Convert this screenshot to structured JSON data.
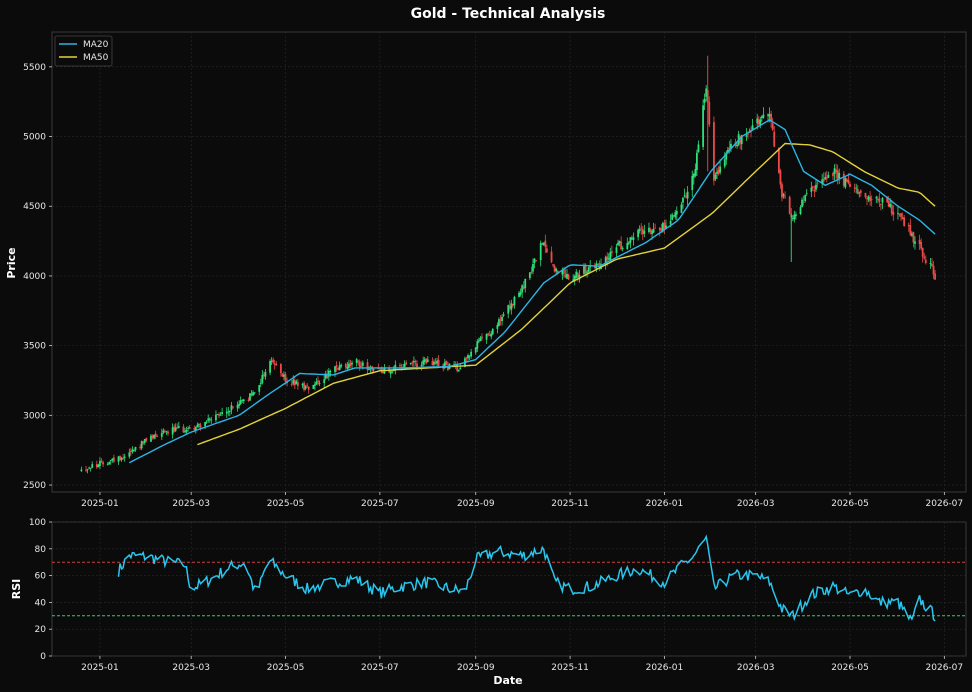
{
  "chart_data": [
    {
      "type": "candlestick",
      "title": "Gold - Technical Analysis",
      "ylabel": "Price",
      "ylim": [
        2450,
        5750
      ],
      "yticks": [
        2500,
        3000,
        3500,
        4000,
        4500,
        5000,
        5500
      ],
      "xrange": [
        "2024-12-01",
        "2026-07-15"
      ],
      "xticks": [
        "2025-01",
        "2025-03",
        "2025-05",
        "2025-07",
        "2025-09",
        "2025-11",
        "2026-01",
        "2026-03",
        "2026-05",
        "2026-07"
      ],
      "grid": true,
      "legend_position": "top-left",
      "colors": {
        "up": "#2ee07a",
        "down": "#ef4a4a",
        "ma20": "#2bb5e6",
        "ma50": "#e3d23a"
      },
      "series": [
        {
          "name": "MA20"
        },
        {
          "name": "MA50"
        }
      ],
      "price_path": [
        [
          "2024-12-20",
          2610
        ],
        [
          "2025-01-15",
          2700
        ],
        [
          "2025-02-10",
          2890
        ],
        [
          "2025-03-01",
          2905
        ],
        [
          "2025-03-20",
          3000
        ],
        [
          "2025-04-10",
          3150
        ],
        [
          "2025-04-22",
          3400
        ],
        [
          "2025-05-01",
          3250
        ],
        [
          "2025-05-15",
          3200
        ],
        [
          "2025-06-01",
          3320
        ],
        [
          "2025-06-15",
          3380
        ],
        [
          "2025-07-01",
          3320
        ],
        [
          "2025-08-01",
          3380
        ],
        [
          "2025-08-20",
          3340
        ],
        [
          "2025-09-01",
          3500
        ],
        [
          "2025-09-15",
          3650
        ],
        [
          "2025-10-01",
          3900
        ],
        [
          "2025-10-15",
          4250
        ],
        [
          "2025-10-22",
          4050
        ],
        [
          "2025-11-01",
          4000
        ],
        [
          "2025-11-20",
          4080
        ],
        [
          "2025-12-01",
          4200
        ],
        [
          "2025-12-20",
          4350
        ],
        [
          "2026-01-01",
          4350
        ],
        [
          "2026-01-10",
          4500
        ],
        [
          "2026-01-20",
          4700
        ],
        [
          "2026-01-28",
          5350
        ],
        [
          "2026-02-02",
          4700
        ],
        [
          "2026-02-15",
          4950
        ],
        [
          "2026-03-01",
          5100
        ],
        [
          "2026-03-10",
          5150
        ],
        [
          "2026-03-18",
          4600
        ],
        [
          "2026-03-25",
          4400
        ],
        [
          "2026-04-05",
          4600
        ],
        [
          "2026-04-20",
          4750
        ],
        [
          "2026-05-05",
          4600
        ],
        [
          "2026-05-20",
          4550
        ],
        [
          "2026-06-01",
          4450
        ],
        [
          "2026-06-15",
          4200
        ],
        [
          "2026-06-25",
          4000
        ]
      ],
      "ma20_path": [
        [
          "2025-01-20",
          2660
        ],
        [
          "2025-02-10",
          2780
        ],
        [
          "2025-03-01",
          2880
        ],
        [
          "2025-04-01",
          3000
        ],
        [
          "2025-04-20",
          3150
        ],
        [
          "2025-05-10",
          3300
        ],
        [
          "2025-06-01",
          3290
        ],
        [
          "2025-06-15",
          3340
        ],
        [
          "2025-07-15",
          3340
        ],
        [
          "2025-08-15",
          3350
        ],
        [
          "2025-09-01",
          3400
        ],
        [
          "2025-09-20",
          3600
        ],
        [
          "2025-10-15",
          3950
        ],
        [
          "2025-11-01",
          4080
        ],
        [
          "2025-11-20",
          4070
        ],
        [
          "2025-12-20",
          4240
        ],
        [
          "2026-01-10",
          4400
        ],
        [
          "2026-01-31",
          4750
        ],
        [
          "2026-02-20",
          5000
        ],
        [
          "2026-03-10",
          5120
        ],
        [
          "2026-03-20",
          5050
        ],
        [
          "2026-04-01",
          4750
        ],
        [
          "2026-04-15",
          4650
        ],
        [
          "2026-05-01",
          4730
        ],
        [
          "2026-05-15",
          4650
        ],
        [
          "2026-06-01",
          4500
        ],
        [
          "2026-06-15",
          4400
        ],
        [
          "2026-06-25",
          4300
        ]
      ],
      "ma50_path": [
        [
          "2025-03-05",
          2790
        ],
        [
          "2025-04-01",
          2900
        ],
        [
          "2025-05-01",
          3050
        ],
        [
          "2025-06-01",
          3230
        ],
        [
          "2025-07-01",
          3320
        ],
        [
          "2025-08-01",
          3340
        ],
        [
          "2025-09-01",
          3360
        ],
        [
          "2025-10-01",
          3620
        ],
        [
          "2025-11-01",
          3950
        ],
        [
          "2025-12-01",
          4120
        ],
        [
          "2026-01-01",
          4200
        ],
        [
          "2026-02-01",
          4450
        ],
        [
          "2026-03-01",
          4750
        ],
        [
          "2026-03-20",
          4950
        ],
        [
          "2026-04-05",
          4940
        ],
        [
          "2026-04-20",
          4890
        ],
        [
          "2026-05-10",
          4750
        ],
        [
          "2026-06-01",
          4630
        ],
        [
          "2026-06-15",
          4600
        ],
        [
          "2026-06-25",
          4500
        ]
      ]
    },
    {
      "type": "line",
      "ylabel": "RSI",
      "xlabel": "Date",
      "ylim": [
        0,
        100
      ],
      "yticks": [
        0,
        20,
        40,
        60,
        80,
        100
      ],
      "xrange": [
        "2024-12-01",
        "2026-07-15"
      ],
      "xticks": [
        "2025-01",
        "2025-03",
        "2025-05",
        "2025-07",
        "2025-09",
        "2025-11",
        "2026-01",
        "2026-03",
        "2026-05",
        "2026-07"
      ],
      "reference_lines": [
        {
          "value": 70,
          "color": "#d23c3c"
        },
        {
          "value": 30,
          "color": "#2ecc71"
        }
      ],
      "color": "#29c6ee",
      "rsi_path": [
        [
          "2025-01-12",
          62
        ],
        [
          "2025-01-20",
          75
        ],
        [
          "2025-02-01",
          74
        ],
        [
          "2025-02-15",
          70
        ],
        [
          "2025-02-25",
          68
        ],
        [
          "2025-03-01",
          50
        ],
        [
          "2025-03-15",
          58
        ],
        [
          "2025-03-25",
          66
        ],
        [
          "2025-04-05",
          70
        ],
        [
          "2025-04-12",
          45
        ],
        [
          "2025-04-20",
          72
        ],
        [
          "2025-05-01",
          60
        ],
        [
          "2025-05-15",
          50
        ],
        [
          "2025-06-01",
          55
        ],
        [
          "2025-06-15",
          58
        ],
        [
          "2025-07-01",
          47
        ],
        [
          "2025-07-15",
          52
        ],
        [
          "2025-08-01",
          55
        ],
        [
          "2025-08-15",
          50
        ],
        [
          "2025-08-25",
          48
        ],
        [
          "2025-09-01",
          72
        ],
        [
          "2025-09-15",
          78
        ],
        [
          "2025-10-01",
          75
        ],
        [
          "2025-10-15",
          80
        ],
        [
          "2025-10-22",
          55
        ],
        [
          "2025-11-01",
          50
        ],
        [
          "2025-11-15",
          52
        ],
        [
          "2025-12-01",
          60
        ],
        [
          "2025-12-15",
          65
        ],
        [
          "2026-01-01",
          55
        ],
        [
          "2026-01-10",
          65
        ],
        [
          "2026-01-20",
          75
        ],
        [
          "2026-01-28",
          87
        ],
        [
          "2026-02-02",
          50
        ],
        [
          "2026-02-15",
          60
        ],
        [
          "2026-03-01",
          60
        ],
        [
          "2026-03-10",
          55
        ],
        [
          "2026-03-18",
          35
        ],
        [
          "2026-03-25",
          30
        ],
        [
          "2026-04-05",
          45
        ],
        [
          "2026-04-20",
          52
        ],
        [
          "2026-05-01",
          45
        ],
        [
          "2026-05-10",
          50
        ],
        [
          "2026-05-20",
          40
        ],
        [
          "2026-06-01",
          40
        ],
        [
          "2026-06-10",
          25
        ],
        [
          "2026-06-15",
          42
        ],
        [
          "2026-06-25",
          30
        ]
      ]
    }
  ]
}
